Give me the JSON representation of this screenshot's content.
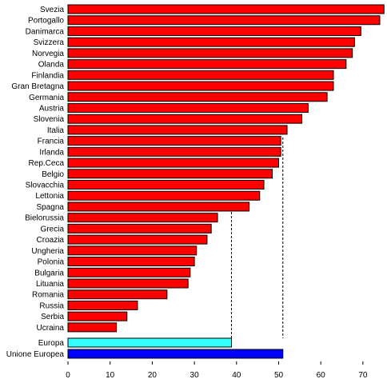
{
  "chart_data": {
    "type": "bar",
    "orientation": "horizontal",
    "categories": [
      "Svezia",
      "Portogallo",
      "Danimarca",
      "Svizzera",
      "Norvegia",
      "Olanda",
      "Finlandia",
      "Gran Bretagna",
      "Germania",
      "Austria",
      "Slovenia",
      "Italia",
      "Francia",
      "Irlanda",
      "Rep.Ceca",
      "Belgio",
      "Slovacchia",
      "Lettonia",
      "Spagna",
      "Bielorussia",
      "Grecia",
      "Croazia",
      "Ungheria",
      "Polonia",
      "Bulgaria",
      "Lituania",
      "Romania",
      "Russia",
      "Serbia",
      "Ucraina"
    ],
    "values": [
      75,
      74,
      69.5,
      68,
      67.5,
      66,
      63,
      63,
      61.5,
      57,
      55.5,
      52,
      50.5,
      50.5,
      50,
      48.5,
      46.5,
      45.5,
      43,
      35.5,
      34,
      33,
      30.5,
      30,
      29,
      28.5,
      23.5,
      16.5,
      14,
      11.5
    ],
    "aggregates": [
      {
        "name": "Europa",
        "value": 38.8,
        "color": "#33ffff"
      },
      {
        "name": "Unione Europea",
        "value": 51,
        "color": "#0000ff"
      }
    ],
    "bar_color": "#ff0000",
    "reference_lines": [
      38.8,
      51
    ],
    "xlim": [
      0,
      75
    ],
    "xticks": [
      0,
      10,
      20,
      30,
      40,
      50,
      60,
      70
    ],
    "grid": false,
    "title": "",
    "xlabel": "",
    "ylabel": ""
  }
}
